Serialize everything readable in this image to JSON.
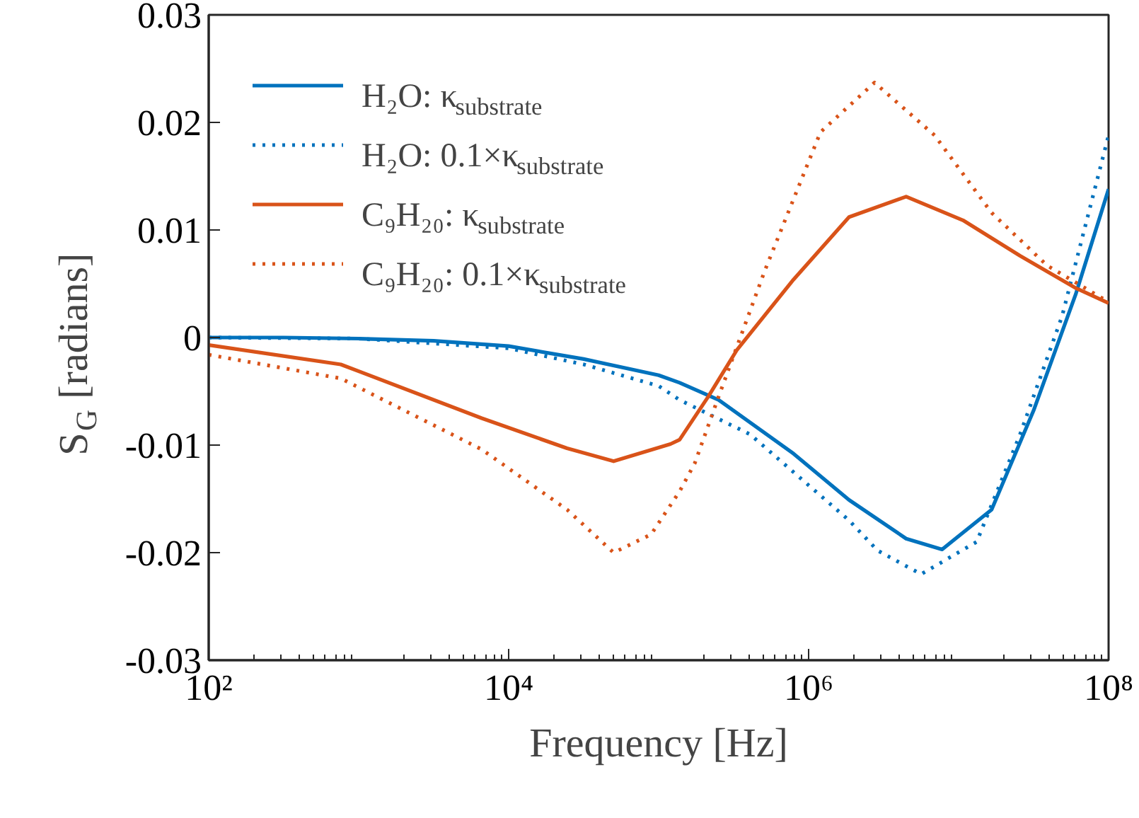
{
  "chart_data": {
    "type": "line",
    "xlabel": "Frequency [Hz]",
    "ylabel": "S$_{G}$ [radians]",
    "log": "x",
    "xlim": [
      100,
      100000000
    ],
    "xticks": [
      {
        "value": 100,
        "label": "10²"
      },
      {
        "value": 10000,
        "label": "10⁴"
      },
      {
        "value": 1000000,
        "label": "10⁶"
      },
      {
        "value": 100000000,
        "label": "10⁸"
      }
    ],
    "ylim": [
      -0.03,
      0.03
    ],
    "yticks": [
      -0.03,
      -0.02,
      -0.01,
      0,
      0.01,
      0.02,
      0.03
    ],
    "grid": false,
    "legend": "top left",
    "series": [
      {
        "name": "H₂O: κ$_{substrate}$",
        "color": "#0072bd",
        "line_style": "solid",
        "x": [
          100,
          316,
          1000,
          3162,
          10000,
          31623,
          100000,
          138000,
          251000,
          794000,
          1860000,
          4470000,
          7760000,
          16600000,
          31600000,
          60300000,
          100000000
        ],
        "values": [
          0,
          0,
          -0.0001,
          -0.0003,
          -0.0008,
          -0.002,
          -0.0035,
          -0.0042,
          -0.0058,
          -0.0108,
          -0.0151,
          -0.0187,
          -0.0197,
          -0.016,
          -0.0068,
          0.004,
          0.0138
        ]
      },
      {
        "name": "H₂O: 0.1×κ$_{substrate}$",
        "color": "#0072bd",
        "line_style": "dotted",
        "x": [
          100,
          1000,
          10000,
          31623,
          100000,
          138000,
          407000,
          1860000,
          2880000,
          5620000,
          13200000,
          25700000,
          49000000,
          100000000
        ],
        "values": [
          0,
          -0.0001,
          -0.001,
          -0.0025,
          -0.0045,
          -0.0058,
          -0.009,
          -0.017,
          -0.0198,
          -0.022,
          -0.019,
          -0.009,
          0.002,
          0.0188
        ]
      },
      {
        "name": "C₉H₂₀: κ$_{substrate}$",
        "color": "#d95319",
        "line_style": "solid",
        "x": [
          100,
          759,
          6610,
          24500,
          50100,
          120000,
          138000,
          214000,
          331000,
          794000,
          1860000,
          4470000,
          10700000,
          25700000,
          60300000,
          100000000
        ],
        "values": [
          -0.0007,
          -0.0025,
          -0.0075,
          -0.0103,
          -0.0115,
          -0.0099,
          -0.0095,
          -0.0055,
          -0.0012,
          0.0054,
          0.0112,
          0.0131,
          0.0109,
          0.0076,
          0.0046,
          0.0032
        ]
      },
      {
        "name": "C₉H₂₀: 0.1×κ$_{substrate}$",
        "color": "#d95319",
        "line_style": "dotted",
        "x": [
          100,
          759,
          6610,
          24500,
          50100,
          89100,
          138000,
          174000,
          251000,
          513000,
          1200000,
          2750000,
          6920000,
          16600000,
          38900000,
          100000000
        ],
        "values": [
          -0.0016,
          -0.0038,
          -0.0104,
          -0.016,
          -0.02,
          -0.0183,
          -0.0143,
          -0.0117,
          -0.0055,
          0.0063,
          0.0191,
          0.0237,
          0.0188,
          0.0116,
          0.0067,
          0.0033
        ]
      }
    ]
  }
}
